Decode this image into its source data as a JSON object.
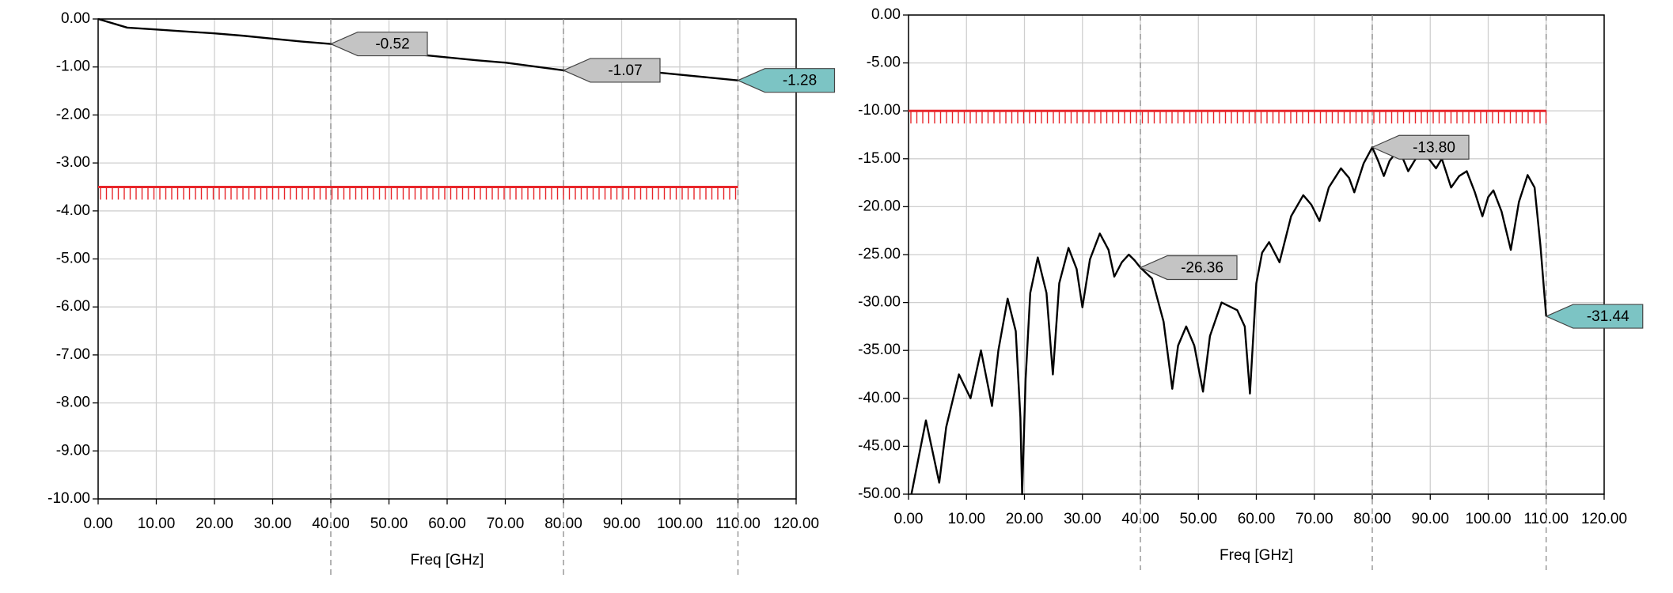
{
  "chart_data": [
    {
      "type": "line",
      "x_label": "Freq [GHz]",
      "color": "#000000",
      "grid": true,
      "xlim": [
        0,
        120
      ],
      "xticks": [
        {
          "value": 0,
          "label": "0.00"
        },
        {
          "value": 10,
          "label": "10.00"
        },
        {
          "value": 20,
          "label": "20.00"
        },
        {
          "value": 30,
          "label": "30.00"
        },
        {
          "value": 40,
          "label": "40.00"
        },
        {
          "value": 50,
          "label": "50.00"
        },
        {
          "value": 60,
          "label": "60.00"
        },
        {
          "value": 70,
          "label": "70.00"
        },
        {
          "value": 80,
          "label": "80.00"
        },
        {
          "value": 90,
          "label": "90.00"
        },
        {
          "value": 100,
          "label": "100.00"
        },
        {
          "value": 110,
          "label": "110.00"
        },
        {
          "value": 120,
          "label": "120.00"
        }
      ],
      "ylim": [
        -10,
        0
      ],
      "yticks": [
        {
          "value": 0,
          "label": "0.00"
        },
        {
          "value": -1,
          "label": "-1.00"
        },
        {
          "value": -2,
          "label": "-2.00"
        },
        {
          "value": -3,
          "label": "-3.00"
        },
        {
          "value": -4,
          "label": "-4.00"
        },
        {
          "value": -5,
          "label": "-5.00"
        },
        {
          "value": -6,
          "label": "-6.00"
        },
        {
          "value": -7,
          "label": "-7.00"
        },
        {
          "value": -8,
          "label": "-8.00"
        },
        {
          "value": -9,
          "label": "-9.00"
        },
        {
          "value": -10,
          "label": "-10.00"
        }
      ],
      "x": [
        0,
        5,
        10,
        15,
        20,
        25,
        30,
        35,
        40,
        45,
        50,
        55,
        60,
        65,
        70,
        75,
        80,
        85,
        90,
        95,
        100,
        105,
        110
      ],
      "values": [
        0,
        -0.18,
        -0.22,
        -0.26,
        -0.3,
        -0.35,
        -0.41,
        -0.47,
        -0.52,
        -0.6,
        -0.67,
        -0.74,
        -0.8,
        -0.86,
        -0.91,
        -0.99,
        -1.07,
        -1.1,
        -1.16,
        -1.1,
        -1.16,
        -1.22,
        -1.28
      ],
      "limit": {
        "value": -3.5,
        "x": [
          0,
          110
        ],
        "color": "#e8262b"
      },
      "markers": {
        "x": [
          40,
          80,
          110
        ],
        "values": [
          -0.52,
          -1.07,
          -1.28
        ],
        "colors": [
          "#c4c4c4",
          "#c4c4c4",
          "#7cc4c4"
        ]
      }
    },
    {
      "type": "line",
      "x_label": "Freq [GHz]",
      "color": "#000000",
      "grid": true,
      "xlim": [
        0,
        120
      ],
      "xticks": [
        {
          "value": 0,
          "label": "0.00"
        },
        {
          "value": 10,
          "label": "10.00"
        },
        {
          "value": 20,
          "label": "20.00"
        },
        {
          "value": 30,
          "label": "30.00"
        },
        {
          "value": 40,
          "label": "40.00"
        },
        {
          "value": 50,
          "label": "50.00"
        },
        {
          "value": 60,
          "label": "60.00"
        },
        {
          "value": 70,
          "label": "70.00"
        },
        {
          "value": 80,
          "label": "80.00"
        },
        {
          "value": 90,
          "label": "90.00"
        },
        {
          "value": 100,
          "label": "100.00"
        },
        {
          "value": 110,
          "label": "110.00"
        },
        {
          "value": 120,
          "label": "120.00"
        }
      ],
      "ylim": [
        -50,
        0
      ],
      "yticks": [
        {
          "value": 0,
          "label": "0.00"
        },
        {
          "value": -5,
          "label": "-5.00"
        },
        {
          "value": -10,
          "label": "-10.00"
        },
        {
          "value": -15,
          "label": "-15.00"
        },
        {
          "value": -20,
          "label": "-20.00"
        },
        {
          "value": -25,
          "label": "-25.00"
        },
        {
          "value": -30,
          "label": "-30.00"
        },
        {
          "value": -35,
          "label": "-35.00"
        },
        {
          "value": -40,
          "label": "-40.00"
        },
        {
          "value": -45,
          "label": "-45.00"
        },
        {
          "value": -50,
          "label": "-50.00"
        }
      ],
      "x": [
        0.5,
        3,
        5.3,
        6.5,
        8.7,
        10.7,
        12.5,
        14.4,
        15.5,
        17.1,
        18.5,
        19.3,
        19.6,
        20.2,
        21,
        22.3,
        23.8,
        24.9,
        26,
        27.6,
        29,
        30,
        31.3,
        33,
        34.5,
        35.5,
        36.8,
        38,
        39,
        40,
        42,
        44,
        45.5,
        46.5,
        47.9,
        49.3,
        50.8,
        52,
        54,
        56.7,
        58,
        58.9,
        60,
        61,
        62.2,
        64,
        66,
        68.1,
        69.5,
        70.9,
        72.5,
        74.6,
        76,
        76.9,
        78.5,
        80,
        81,
        82,
        83,
        84.3,
        85.3,
        86.2,
        87.5,
        89,
        90,
        91,
        92,
        93.6,
        95,
        96.3,
        97.7,
        99,
        100,
        100.9,
        102.3,
        103.9,
        105.3,
        106.8,
        108,
        109,
        110
      ],
      "values": [
        -50,
        -42.3,
        -48.8,
        -43,
        -37.5,
        -40,
        -35,
        -40.8,
        -35,
        -29.6,
        -33,
        -42,
        -50,
        -38,
        -29,
        -25.3,
        -29,
        -37.5,
        -28,
        -24.3,
        -26.5,
        -30.5,
        -25.5,
        -22.8,
        -24.5,
        -27.3,
        -25.8,
        -25,
        -25.6,
        -26.36,
        -27.5,
        -32,
        -39,
        -34.5,
        -32.5,
        -34.5,
        -39.3,
        -33.5,
        -30,
        -30.8,
        -32.5,
        -39.5,
        -28,
        -24.8,
        -23.7,
        -25.8,
        -21,
        -18.8,
        -19.8,
        -21.5,
        -18,
        -16,
        -17,
        -18.5,
        -15.5,
        -13.8,
        -15.2,
        -16.8,
        -15.2,
        -14.2,
        -15,
        -16.3,
        -15,
        -14.5,
        -15.2,
        -16,
        -15,
        -18,
        -16.8,
        -16.3,
        -18.5,
        -21,
        -19,
        -18.3,
        -20.5,
        -24.5,
        -19.5,
        -16.7,
        -18,
        -24,
        -31.44
      ],
      "limit": {
        "value": -10,
        "x": [
          0,
          110
        ],
        "color": "#e8262b"
      },
      "markers": {
        "x": [
          40,
          80,
          110
        ],
        "values": [
          -26.36,
          -13.8,
          -31.44
        ],
        "value_labels": [
          "-26.36",
          "-13.80",
          "-31.44"
        ],
        "colors": [
          "#c4c4c4",
          "#c4c4c4",
          "#7cc4c4"
        ]
      }
    }
  ]
}
